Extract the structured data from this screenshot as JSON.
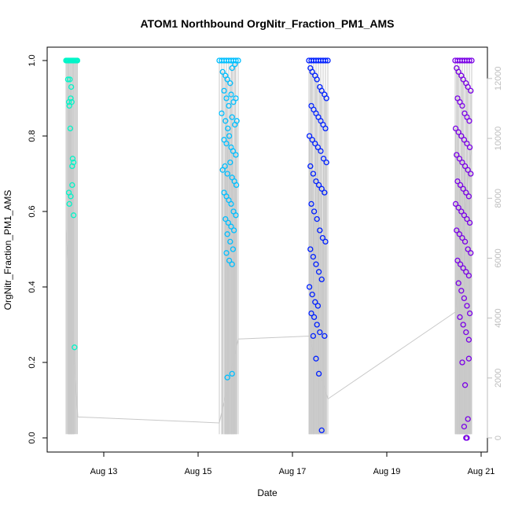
{
  "chart_data": {
    "type": "scatter",
    "title": "ATOM1 Northbound OrgNitr_Fraction_PM1_AMS",
    "xlabel": "Date",
    "ylabel": "OrgNitr_Fraction_PM1_AMS",
    "x_tick_labels": [
      "Aug 13",
      "Aug 15",
      "Aug 17",
      "Aug 19",
      "Aug 21"
    ],
    "x_tick_values": [
      13,
      15,
      17,
      19,
      21
    ],
    "y_tick_labels": [
      "0.0",
      "0.2",
      "0.4",
      "0.6",
      "0.8",
      "1.0"
    ],
    "y_tick_values": [
      0,
      0.2,
      0.4,
      0.6,
      0.8,
      1.0
    ],
    "ylim": [
      0,
      1.0
    ],
    "xlim": [
      12.0,
      21.0
    ],
    "y2_tick_labels": [
      "0",
      "2000",
      "4000",
      "6000",
      "8000",
      "10000",
      "12000"
    ],
    "y2_tick_values": [
      0,
      2000,
      4000,
      6000,
      8000,
      10000,
      12000
    ],
    "y2lim": [
      0,
      12600
    ],
    "grid": false,
    "colors": {
      "c1": "#00f5c8",
      "c2": "#00bfff",
      "c3": "#0020ff",
      "c4": "#7a00e6",
      "gray_line": "#c8c8c8",
      "axis": "#000000",
      "right_axis": "#bdbdbd"
    },
    "series": [
      {
        "color_key": "c1",
        "x": [
          12.2,
          12.22,
          12.24,
          12.26,
          12.28,
          12.3,
          12.32,
          12.34,
          12.36,
          12.38,
          12.4,
          12.42,
          12.44,
          12.24,
          12.28,
          12.3,
          12.26,
          12.27,
          12.32,
          12.29,
          12.31,
          12.34,
          12.36,
          12.26,
          12.33,
          12.27,
          12.3,
          12.36,
          12.33,
          12.38
        ],
        "y": [
          1,
          1,
          1,
          1,
          1,
          1,
          1,
          1,
          1,
          1,
          1,
          1,
          1,
          0.95,
          0.95,
          0.9,
          0.89,
          0.88,
          0.89,
          0.82,
          0.93,
          0.74,
          0.73,
          0.65,
          0.67,
          0.62,
          0.64,
          0.59,
          0.72,
          0.24
        ]
      },
      {
        "color_key": "c2",
        "x": [
          15.45,
          15.5,
          15.55,
          15.6,
          15.65,
          15.7,
          15.75,
          15.8,
          15.85,
          15.52,
          15.58,
          15.62,
          15.68,
          15.72,
          15.78,
          15.55,
          15.6,
          15.7,
          15.75,
          15.8,
          15.65,
          15.5,
          15.58,
          15.63,
          15.72,
          15.78,
          15.82,
          15.55,
          15.6,
          15.66,
          15.7,
          15.74,
          15.8,
          15.52,
          15.57,
          15.62,
          15.68,
          15.72,
          15.77,
          15.81,
          15.55,
          15.6,
          15.65,
          15.7,
          15.75,
          15.8,
          15.58,
          15.64,
          15.7,
          15.76,
          15.62,
          15.68,
          15.74,
          15.6,
          15.66,
          15.72,
          15.62,
          15.72
        ],
        "y": [
          1,
          1,
          1,
          1,
          1,
          1,
          1,
          1,
          1,
          0.97,
          0.96,
          0.95,
          0.94,
          0.98,
          0.99,
          0.92,
          0.9,
          0.91,
          0.89,
          0.9,
          0.88,
          0.86,
          0.84,
          0.82,
          0.85,
          0.83,
          0.84,
          0.79,
          0.78,
          0.8,
          0.77,
          0.76,
          0.75,
          0.71,
          0.72,
          0.7,
          0.73,
          0.69,
          0.68,
          0.67,
          0.65,
          0.64,
          0.63,
          0.62,
          0.6,
          0.59,
          0.58,
          0.57,
          0.56,
          0.55,
          0.54,
          0.52,
          0.5,
          0.49,
          0.47,
          0.46,
          0.16,
          0.17
        ]
      },
      {
        "color_key": "c3",
        "x": [
          17.35,
          17.4,
          17.45,
          17.5,
          17.55,
          17.6,
          17.65,
          17.7,
          17.75,
          17.38,
          17.42,
          17.48,
          17.52,
          17.58,
          17.62,
          17.68,
          17.72,
          17.4,
          17.45,
          17.5,
          17.55,
          17.6,
          17.65,
          17.7,
          17.36,
          17.42,
          17.48,
          17.54,
          17.6,
          17.66,
          17.72,
          17.38,
          17.44,
          17.5,
          17.56,
          17.62,
          17.68,
          17.4,
          17.46,
          17.52,
          17.58,
          17.64,
          17.7,
          17.38,
          17.44,
          17.5,
          17.56,
          17.62,
          17.36,
          17.42,
          17.48,
          17.54,
          17.4,
          17.46,
          17.52,
          17.58,
          17.44,
          17.5,
          17.56,
          17.62,
          17.68
        ],
        "y": [
          1,
          1,
          1,
          1,
          1,
          1,
          1,
          1,
          1,
          0.98,
          0.97,
          0.96,
          0.95,
          0.93,
          0.92,
          0.91,
          0.9,
          0.88,
          0.87,
          0.86,
          0.85,
          0.84,
          0.83,
          0.82,
          0.8,
          0.79,
          0.78,
          0.77,
          0.76,
          0.74,
          0.73,
          0.72,
          0.7,
          0.68,
          0.67,
          0.66,
          0.65,
          0.62,
          0.6,
          0.58,
          0.55,
          0.53,
          0.52,
          0.5,
          0.48,
          0.46,
          0.44,
          0.42,
          0.4,
          0.38,
          0.36,
          0.35,
          0.33,
          0.32,
          0.3,
          0.28,
          0.27,
          0.21,
          0.17,
          0.02,
          0.27
        ]
      },
      {
        "color_key": "c4",
        "x": [
          20.45,
          20.5,
          20.55,
          20.6,
          20.65,
          20.7,
          20.75,
          20.8,
          20.48,
          20.52,
          20.58,
          20.62,
          20.68,
          20.72,
          20.78,
          20.5,
          20.55,
          20.6,
          20.65,
          20.7,
          20.75,
          20.46,
          20.52,
          20.58,
          20.64,
          20.7,
          20.76,
          20.48,
          20.54,
          20.6,
          20.66,
          20.72,
          20.78,
          20.5,
          20.56,
          20.62,
          20.68,
          20.74,
          20.46,
          20.52,
          20.58,
          20.64,
          20.7,
          20.76,
          20.48,
          20.54,
          20.6,
          20.66,
          20.72,
          20.78,
          20.5,
          20.56,
          20.62,
          20.68,
          20.74,
          20.52,
          20.58,
          20.64,
          20.7,
          20.76,
          20.55,
          20.62,
          20.68,
          20.74,
          20.6,
          20.66,
          20.72,
          20.64,
          20.7,
          20.68,
          20.74
        ],
        "y": [
          1,
          1,
          1,
          1,
          1,
          1,
          1,
          1,
          0.98,
          0.97,
          0.96,
          0.95,
          0.94,
          0.93,
          0.92,
          0.9,
          0.89,
          0.88,
          0.86,
          0.85,
          0.84,
          0.82,
          0.81,
          0.8,
          0.79,
          0.78,
          0.77,
          0.75,
          0.74,
          0.73,
          0.72,
          0.71,
          0.7,
          0.68,
          0.67,
          0.66,
          0.65,
          0.64,
          0.62,
          0.61,
          0.6,
          0.59,
          0.58,
          0.57,
          0.55,
          0.54,
          0.53,
          0.52,
          0.5,
          0.49,
          0.47,
          0.46,
          0.45,
          0.44,
          0.43,
          0.41,
          0.39,
          0.37,
          0.35,
          0.33,
          0.32,
          0.3,
          0.28,
          0.26,
          0.2,
          0.14,
          0.05,
          0.03,
          0.0,
          0.0,
          0.21
        ]
      }
    ],
    "background_line": {
      "color_key": "gray_line",
      "axis": "right",
      "x": [
        12.2,
        12.45,
        15.45,
        15.85,
        17.35,
        17.75,
        20.45,
        20.8
      ],
      "y": [
        7000,
        700,
        500,
        3300,
        3400,
        1300,
        4200,
        9800
      ]
    }
  }
}
